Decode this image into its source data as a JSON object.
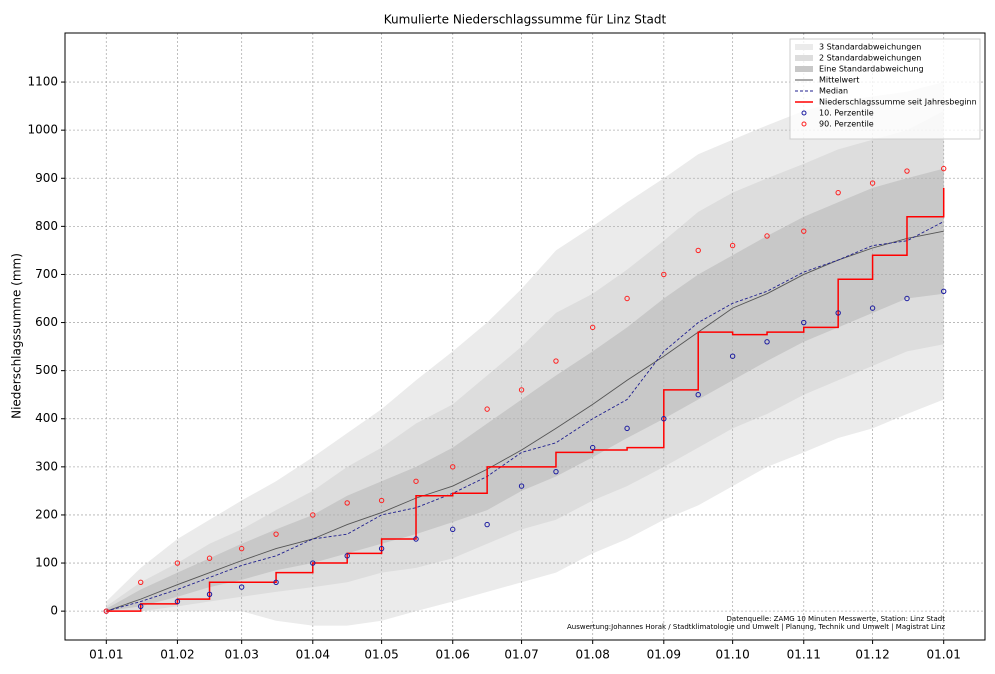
{
  "chart_data": {
    "type": "line",
    "title": "Kumulierte Niederschlagssumme für Linz Stadt",
    "y_label": "Niederschlagssumme (mm)",
    "annotations": [
      "Datenquelle: ZAMG 10 Minuten Messwerte, Station: Linz Stadt",
      "Auswertung:Johannes Horak / Stadtklimatologie und Umwelt | Planung, Technik und Umwelt | Magistrat Linz"
    ],
    "x": [
      0,
      15,
      31,
      45,
      59,
      74,
      90,
      105,
      120,
      135,
      151,
      166,
      181,
      196,
      212,
      227,
      243,
      258,
      273,
      288,
      304,
      319,
      334,
      349,
      365
    ],
    "xlim": [
      -18,
      383
    ],
    "xticks": [
      {
        "value": 0,
        "label": "01.01"
      },
      {
        "value": 31,
        "label": "01.02"
      },
      {
        "value": 59,
        "label": "01.03"
      },
      {
        "value": 90,
        "label": "01.04"
      },
      {
        "value": 120,
        "label": "01.05"
      },
      {
        "value": 151,
        "label": "01.06"
      },
      {
        "value": 181,
        "label": "01.07"
      },
      {
        "value": 212,
        "label": "01.08"
      },
      {
        "value": 243,
        "label": "01.09"
      },
      {
        "value": 273,
        "label": "01.10"
      },
      {
        "value": 304,
        "label": "01.11"
      },
      {
        "value": 334,
        "label": "01.12"
      },
      {
        "value": 365,
        "label": "01.01"
      }
    ],
    "ylim": [
      -60,
      1202
    ],
    "yticks": [
      0,
      100,
      200,
      300,
      400,
      500,
      600,
      700,
      800,
      900,
      1000,
      1100
    ],
    "grid": true,
    "legend": "upper right",
    "bands": [
      {
        "name": "3 Standardabweichungen",
        "color": "#ebebeb",
        "lower": [
          0,
          0,
          0,
          0,
          0,
          -20,
          -30,
          -30,
          -20,
          0,
          20,
          40,
          60,
          80,
          120,
          150,
          190,
          220,
          260,
          300,
          330,
          360,
          380,
          410,
          440
        ],
        "upper": [
          20,
          90,
          150,
          190,
          230,
          270,
          320,
          370,
          420,
          480,
          540,
          600,
          670,
          750,
          800,
          850,
          900,
          950,
          980,
          1010,
          1040,
          1060,
          1070,
          1080,
          1100
        ]
      },
      {
        "name": "2 Standardabweichungen",
        "color": "#dddddd",
        "lower": [
          0,
          0,
          10,
          20,
          30,
          40,
          50,
          60,
          80,
          90,
          110,
          140,
          170,
          190,
          230,
          260,
          300,
          340,
          380,
          410,
          450,
          480,
          510,
          540,
          555
        ],
        "upper": [
          10,
          60,
          100,
          140,
          170,
          210,
          250,
          300,
          340,
          390,
          430,
          490,
          550,
          620,
          660,
          710,
          770,
          830,
          870,
          900,
          930,
          960,
          980,
          1000,
          1040
        ]
      },
      {
        "name": "Eine Standardabweichung",
        "color": "#c8c8c8",
        "lower": [
          0,
          10,
          30,
          50,
          65,
          85,
          100,
          120,
          140,
          160,
          185,
          210,
          250,
          280,
          320,
          360,
          400,
          440,
          480,
          520,
          560,
          590,
          620,
          650,
          660
        ],
        "upper": [
          5,
          45,
          80,
          110,
          140,
          170,
          200,
          240,
          270,
          300,
          340,
          390,
          440,
          490,
          540,
          590,
          650,
          700,
          740,
          780,
          820,
          850,
          880,
          900,
          920
        ]
      }
    ],
    "series": [
      {
        "name": "Mittelwert",
        "color": "#555555",
        "style": "solid",
        "values": [
          0,
          25,
          55,
          80,
          105,
          130,
          150,
          180,
          205,
          235,
          260,
          295,
          335,
          380,
          430,
          480,
          530,
          580,
          630,
          660,
          700,
          730,
          755,
          775,
          790
        ]
      },
      {
        "name": "Median",
        "color": "#1f1f8f",
        "style": "dashed",
        "values": [
          0,
          20,
          45,
          70,
          95,
          115,
          150,
          160,
          200,
          215,
          245,
          280,
          330,
          350,
          400,
          440,
          540,
          600,
          640,
          665,
          705,
          730,
          760,
          770,
          810
        ]
      },
      {
        "name": "Niederschlagssumme seit Jahresbeginn",
        "color": "#ff0000",
        "style": "step",
        "values": [
          0,
          15,
          25,
          60,
          60,
          80,
          100,
          120,
          150,
          240,
          245,
          300,
          300,
          330,
          335,
          340,
          460,
          580,
          575,
          580,
          590,
          690,
          740,
          820,
          880
        ]
      },
      {
        "name": "10. Perzentile",
        "color": "#1a1aa0",
        "style": "dots",
        "values": [
          0,
          10,
          20,
          35,
          50,
          60,
          100,
          115,
          130,
          150,
          170,
          180,
          260,
          290,
          340,
          380,
          400,
          450,
          530,
          560,
          600,
          620,
          630,
          650,
          665
        ]
      },
      {
        "name": "90. Perzentile",
        "color": "#ff2020",
        "style": "dots",
        "values": [
          0,
          60,
          100,
          110,
          130,
          160,
          200,
          225,
          230,
          270,
          300,
          420,
          460,
          520,
          590,
          650,
          700,
          750,
          760,
          780,
          790,
          870,
          890,
          915,
          920
        ]
      }
    ]
  }
}
